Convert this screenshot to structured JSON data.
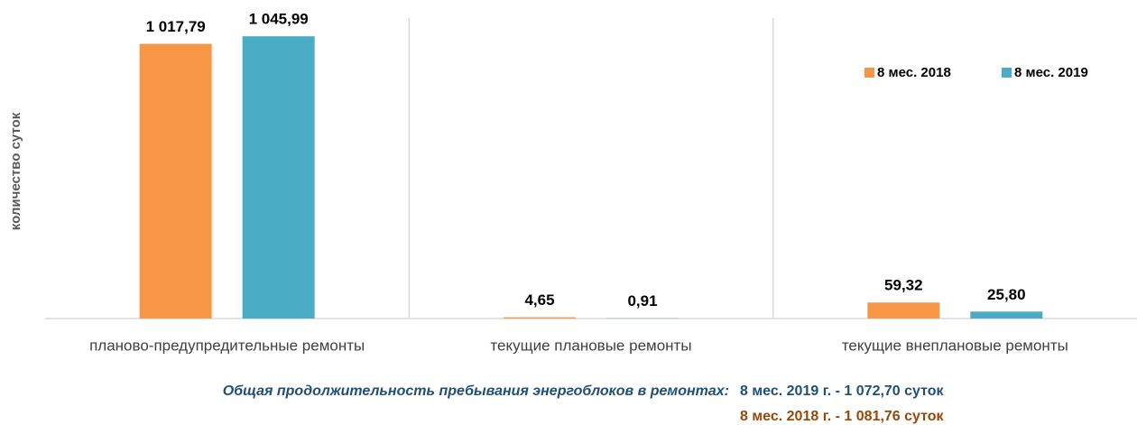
{
  "chart_data": {
    "type": "bar",
    "y_label": "количество суток",
    "categories": [
      "планово-предупредительные ремонты",
      "текущие плановые ремонты",
      "текущие внеплановые ремонты"
    ],
    "series": [
      {
        "name": "8 мес. 2018",
        "color": "#f79646",
        "values": [
          1017.79,
          4.65,
          59.32
        ],
        "value_labels": [
          "1 017,79",
          "4,65",
          "59,32"
        ]
      },
      {
        "name": "8 мес. 2019",
        "color": "#4bacc6",
        "values": [
          1045.99,
          0.91,
          25.8
        ],
        "value_labels": [
          "1 045,99",
          "0,91",
          "25,80"
        ]
      }
    ],
    "ylim": [
      0,
      1050
    ],
    "legend": "top-right",
    "note": {
      "label": "Общая продолжительность пребывания энергоблоков в ремонтах:",
      "lines": [
        {
          "text": "8 мес. 2019 г. - 1 072,70 суток",
          "color": "#1f4e79"
        },
        {
          "text": "8 мес. 2018 г. - 1 081,76 суток",
          "color": "#984807"
        }
      ]
    }
  }
}
